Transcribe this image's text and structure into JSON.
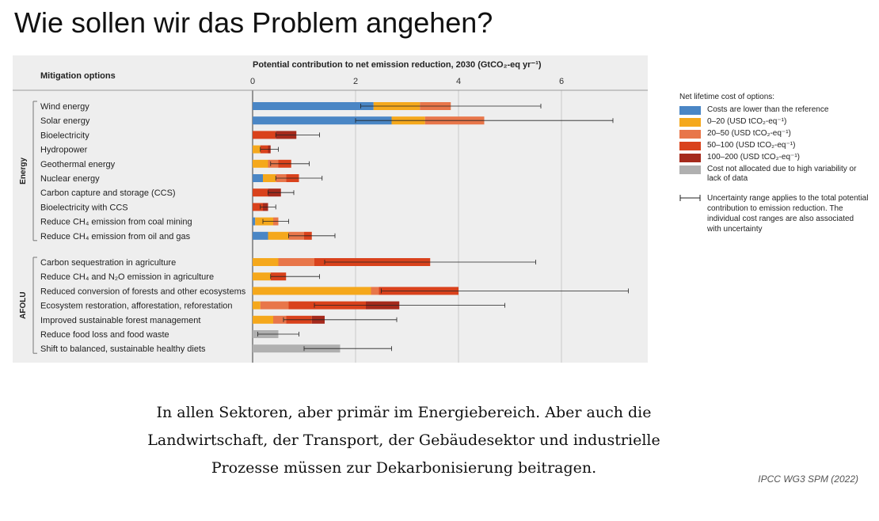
{
  "slide": {
    "title": "Wie sollen wir das Problem angehen?",
    "caption_lines": [
      "In allen Sektoren, aber primär im Energiebereich. Aber auch die",
      "Landwirtschaft, der Transport, der Gebäudesektor und industrielle",
      "Prozesse müssen zur Dekarbonisierung beitragen."
    ],
    "source": "IPCC WG3 SPM (2022)"
  },
  "legend": {
    "title": "Net lifetime cost of options:",
    "items": [
      {
        "key": "lower",
        "label": "Costs are lower than the reference",
        "color": "#4a86c5"
      },
      {
        "key": "c0_20",
        "label": "0–20 (USD tCO₂-eq⁻¹)",
        "color": "#f5a81c"
      },
      {
        "key": "c20_50",
        "label": "20–50 (USD tCO₂-eq⁻¹)",
        "color": "#e8764a"
      },
      {
        "key": "c50_100",
        "label": "50–100 (USD tCO₂-eq⁻¹)",
        "color": "#d9421c"
      },
      {
        "key": "c100_200",
        "label": "100–200 (USD tCO₂-eq⁻¹)",
        "color": "#a52a1c"
      },
      {
        "key": "na",
        "label": "Cost not allocated due to high variability or lack of data",
        "color": "#b0b0b0"
      }
    ],
    "uncertainty_label": "Uncertainty range applies to the total potential contribution to emission reduction. The individual cost ranges are also associated with uncertainty"
  },
  "chart_data": {
    "type": "bar",
    "orientation": "horizontal",
    "stacked": true,
    "title": "Potential contribution to net emission reduction, 2030 (GtCO₂-eq yr⁻¹)",
    "category_header": "Mitigation options",
    "xlim": [
      0,
      7.7
    ],
    "xticks": [
      0,
      2,
      4,
      6
    ],
    "grid": true,
    "legend_position": "right",
    "series_order": [
      "lower",
      "c0_20",
      "c20_50",
      "c50_100",
      "c100_200",
      "na"
    ],
    "groups": [
      {
        "name": "Energy",
        "options": [
          {
            "label": "Wind energy",
            "segments": [
              2.35,
              0.9,
              0.6,
              0,
              0,
              0
            ],
            "range": [
              2.1,
              5.6
            ]
          },
          {
            "label": "Solar energy",
            "segments": [
              2.7,
              0.65,
              1.15,
              0,
              0,
              0
            ],
            "range": [
              2.0,
              7.0
            ]
          },
          {
            "label": "Bioelectricity",
            "segments": [
              0,
              0,
              0,
              0.45,
              0.4,
              0
            ],
            "range": [
              0.45,
              1.3
            ]
          },
          {
            "label": "Hydropower",
            "segments": [
              0,
              0.15,
              0,
              0.15,
              0.05,
              0
            ],
            "range": [
              0.15,
              0.5
            ]
          },
          {
            "label": "Geothermal energy",
            "segments": [
              0,
              0.3,
              0.2,
              0.25,
              0,
              0
            ],
            "range": [
              0.35,
              1.1
            ]
          },
          {
            "label": "Nuclear energy",
            "segments": [
              0.2,
              0.25,
              0.2,
              0.25,
              0,
              0
            ],
            "range": [
              0.45,
              1.35
            ]
          },
          {
            "label": "Carbon capture and storage (CCS)",
            "segments": [
              0,
              0,
              0,
              0.3,
              0.25,
              0
            ],
            "range": [
              0.3,
              0.8
            ]
          },
          {
            "label": "Bioelectricity with CCS",
            "segments": [
              0,
              0,
              0,
              0.2,
              0.1,
              0
            ],
            "range": [
              0.15,
              0.45
            ]
          },
          {
            "label": "Reduce CH₄ emission from coal mining",
            "segments": [
              0.05,
              0.35,
              0.1,
              0,
              0,
              0
            ],
            "range": [
              0.2,
              0.7
            ]
          },
          {
            "label": "Reduce CH₄ emission from oil and gas",
            "segments": [
              0.3,
              0.4,
              0.3,
              0.15,
              0,
              0
            ],
            "range": [
              0.7,
              1.6
            ]
          }
        ]
      },
      {
        "name": "AFOLU",
        "options": [
          {
            "label": "Carbon sequestration in agriculture",
            "segments": [
              0,
              0.5,
              0.7,
              2.25,
              0,
              0
            ],
            "range": [
              1.4,
              5.5
            ]
          },
          {
            "label": "Reduce CH₄ and N₂O emission in agriculture",
            "segments": [
              0,
              0.35,
              0,
              0.3,
              0,
              0
            ],
            "range": [
              0.35,
              1.3
            ]
          },
          {
            "label": "Reduced conversion of forests and other ecosystems",
            "segments": [
              0,
              2.3,
              0.15,
              1.55,
              0,
              0
            ],
            "range": [
              2.5,
              7.3
            ]
          },
          {
            "label": "Ecosystem restoration, afforestation, reforestation",
            "segments": [
              0,
              0.15,
              0.55,
              1.5,
              0.65,
              0
            ],
            "range": [
              1.2,
              4.9
            ]
          },
          {
            "label": "Improved sustainable forest management",
            "segments": [
              0,
              0.4,
              0.25,
              0.5,
              0.25,
              0
            ],
            "range": [
              0.6,
              2.8
            ]
          },
          {
            "label": "Reduce food loss and food waste",
            "segments": [
              0,
              0,
              0,
              0,
              0,
              0.5
            ],
            "range": [
              0.1,
              0.9
            ]
          },
          {
            "label": "Shift to balanced, sustainable healthy diets",
            "segments": [
              0,
              0,
              0,
              0,
              0,
              1.7
            ],
            "range": [
              1.0,
              2.7
            ]
          }
        ]
      }
    ]
  }
}
